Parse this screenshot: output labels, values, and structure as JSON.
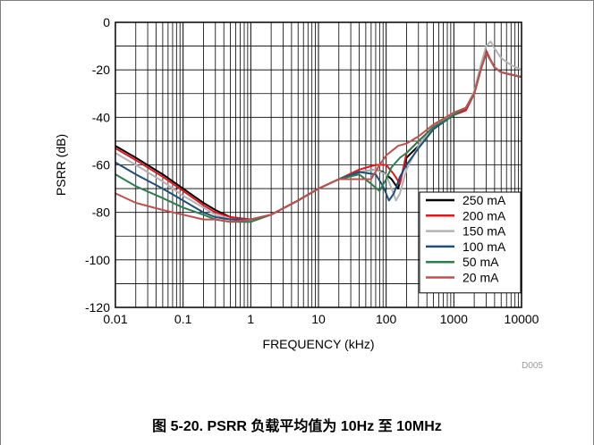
{
  "chart_data": {
    "type": "line",
    "title": "",
    "xlabel": "FREQUENCY (kHz)",
    "ylabel": "PSRR (dB)",
    "x_scale": "log",
    "xlim": [
      0.01,
      10000
    ],
    "ylim": [
      -120,
      0
    ],
    "x_ticks": [
      "0.01",
      "0.1",
      "1",
      "10",
      "100",
      "1000",
      "10000"
    ],
    "y_ticks": [
      "0",
      "-20",
      "-40",
      "-60",
      "-80",
      "-100",
      "-120"
    ],
    "grid": true,
    "legend_position": "bottom-right",
    "series": [
      {
        "name": "250 mA",
        "color": "#000000",
        "x": [
          0.01,
          0.02,
          0.05,
          0.1,
          0.2,
          0.3,
          0.5,
          1,
          2,
          5,
          10,
          20,
          40,
          70,
          90,
          120,
          150,
          200,
          300,
          500,
          1000,
          1500,
          2000,
          2500,
          3000,
          3500,
          4000,
          5000,
          7000,
          10000
        ],
        "y": [
          -52,
          -57,
          -64,
          -70,
          -76,
          -79,
          -82,
          -83,
          -81,
          -75,
          -70,
          -66,
          -63,
          -62,
          -63,
          -66,
          -70,
          -57,
          -52,
          -44,
          -39,
          -37,
          -30,
          -20,
          -12,
          -16,
          -19,
          -21,
          -22,
          -23
        ]
      },
      {
        "name": "200 mA",
        "color": "#e8141b",
        "x": [
          0.01,
          0.02,
          0.05,
          0.1,
          0.2,
          0.3,
          0.5,
          1,
          2,
          5,
          10,
          20,
          40,
          70,
          100,
          130,
          160,
          200,
          300,
          500,
          1000,
          1500,
          2000,
          2500,
          3000,
          3500,
          4000,
          5000,
          7000,
          10000
        ],
        "y": [
          -53,
          -58,
          -65,
          -71,
          -77,
          -80,
          -82,
          -83,
          -81,
          -75,
          -70,
          -66,
          -62,
          -60,
          -60,
          -64,
          -68,
          -55,
          -50,
          -44,
          -39,
          -37,
          -30,
          -20,
          -12,
          -16,
          -19,
          -21,
          -22,
          -23
        ]
      },
      {
        "name": "150 mA",
        "color": "#b3b3b3",
        "x": [
          0.01,
          0.02,
          0.05,
          0.1,
          0.2,
          0.3,
          0.5,
          1,
          2,
          5,
          10,
          20,
          40,
          70,
          100,
          120,
          140,
          160,
          200,
          300,
          500,
          1000,
          1500,
          2000,
          2500,
          3000,
          3500,
          4000,
          5000,
          7000,
          10000
        ],
        "y": [
          -55,
          -60,
          -67,
          -73,
          -78,
          -81,
          -83,
          -83,
          -81,
          -75,
          -70,
          -66,
          -63,
          -62,
          -64,
          -70,
          -75,
          -72,
          -62,
          -52,
          -44,
          -38,
          -36,
          -29,
          -18,
          -10,
          -8,
          -11,
          -15,
          -18,
          -20
        ]
      },
      {
        "name": "100 mA",
        "color": "#1f4e79",
        "x": [
          0.01,
          0.02,
          0.05,
          0.1,
          0.2,
          0.3,
          0.5,
          1,
          2,
          5,
          10,
          20,
          40,
          70,
          90,
          110,
          130,
          160,
          200,
          300,
          500,
          1000,
          1500,
          2000,
          2500,
          3000,
          3500,
          4000,
          5000,
          7000,
          10000
        ],
        "y": [
          -59,
          -64,
          -70,
          -75,
          -80,
          -82,
          -83,
          -83,
          -81,
          -75,
          -70,
          -66,
          -63,
          -64,
          -69,
          -75,
          -72,
          -65,
          -60,
          -53,
          -45,
          -39,
          -36,
          -30,
          -20,
          -13,
          -16,
          -19,
          -21,
          -22,
          -23
        ]
      },
      {
        "name": "50 mA",
        "color": "#2e7d4f",
        "x": [
          0.01,
          0.02,
          0.05,
          0.1,
          0.2,
          0.3,
          0.5,
          1,
          2,
          5,
          10,
          20,
          40,
          60,
          80,
          100,
          120,
          160,
          200,
          300,
          500,
          1000,
          1500,
          2000,
          2500,
          3000,
          3500,
          4000,
          5000,
          7000,
          10000
        ],
        "y": [
          -64,
          -69,
          -74,
          -78,
          -81,
          -83,
          -84,
          -84,
          -81,
          -75,
          -70,
          -66,
          -64,
          -68,
          -71,
          -66,
          -61,
          -57,
          -55,
          -50,
          -44,
          -39,
          -36,
          -30,
          -20,
          -13,
          -16,
          -19,
          -21,
          -22,
          -23
        ]
      },
      {
        "name": "20 mA",
        "color": "#c0504d",
        "x": [
          0.01,
          0.02,
          0.05,
          0.1,
          0.2,
          0.3,
          0.5,
          1,
          2,
          5,
          10,
          20,
          40,
          60,
          80,
          100,
          150,
          200,
          300,
          500,
          1000,
          1500,
          2000,
          2500,
          3000,
          3500,
          4000,
          5000,
          7000,
          10000
        ],
        "y": [
          -72,
          -76,
          -79,
          -81,
          -83,
          -83,
          -84,
          -83,
          -81,
          -75,
          -70,
          -66,
          -66,
          -66,
          -60,
          -56,
          -52,
          -51,
          -48,
          -43,
          -38,
          -36,
          -30,
          -20,
          -13,
          -16,
          -19,
          -21,
          -22,
          -23
        ]
      }
    ]
  },
  "figure_id": "D005",
  "caption": "图 5-20. PSRR 负载平均值为 10Hz 至 10MHz"
}
